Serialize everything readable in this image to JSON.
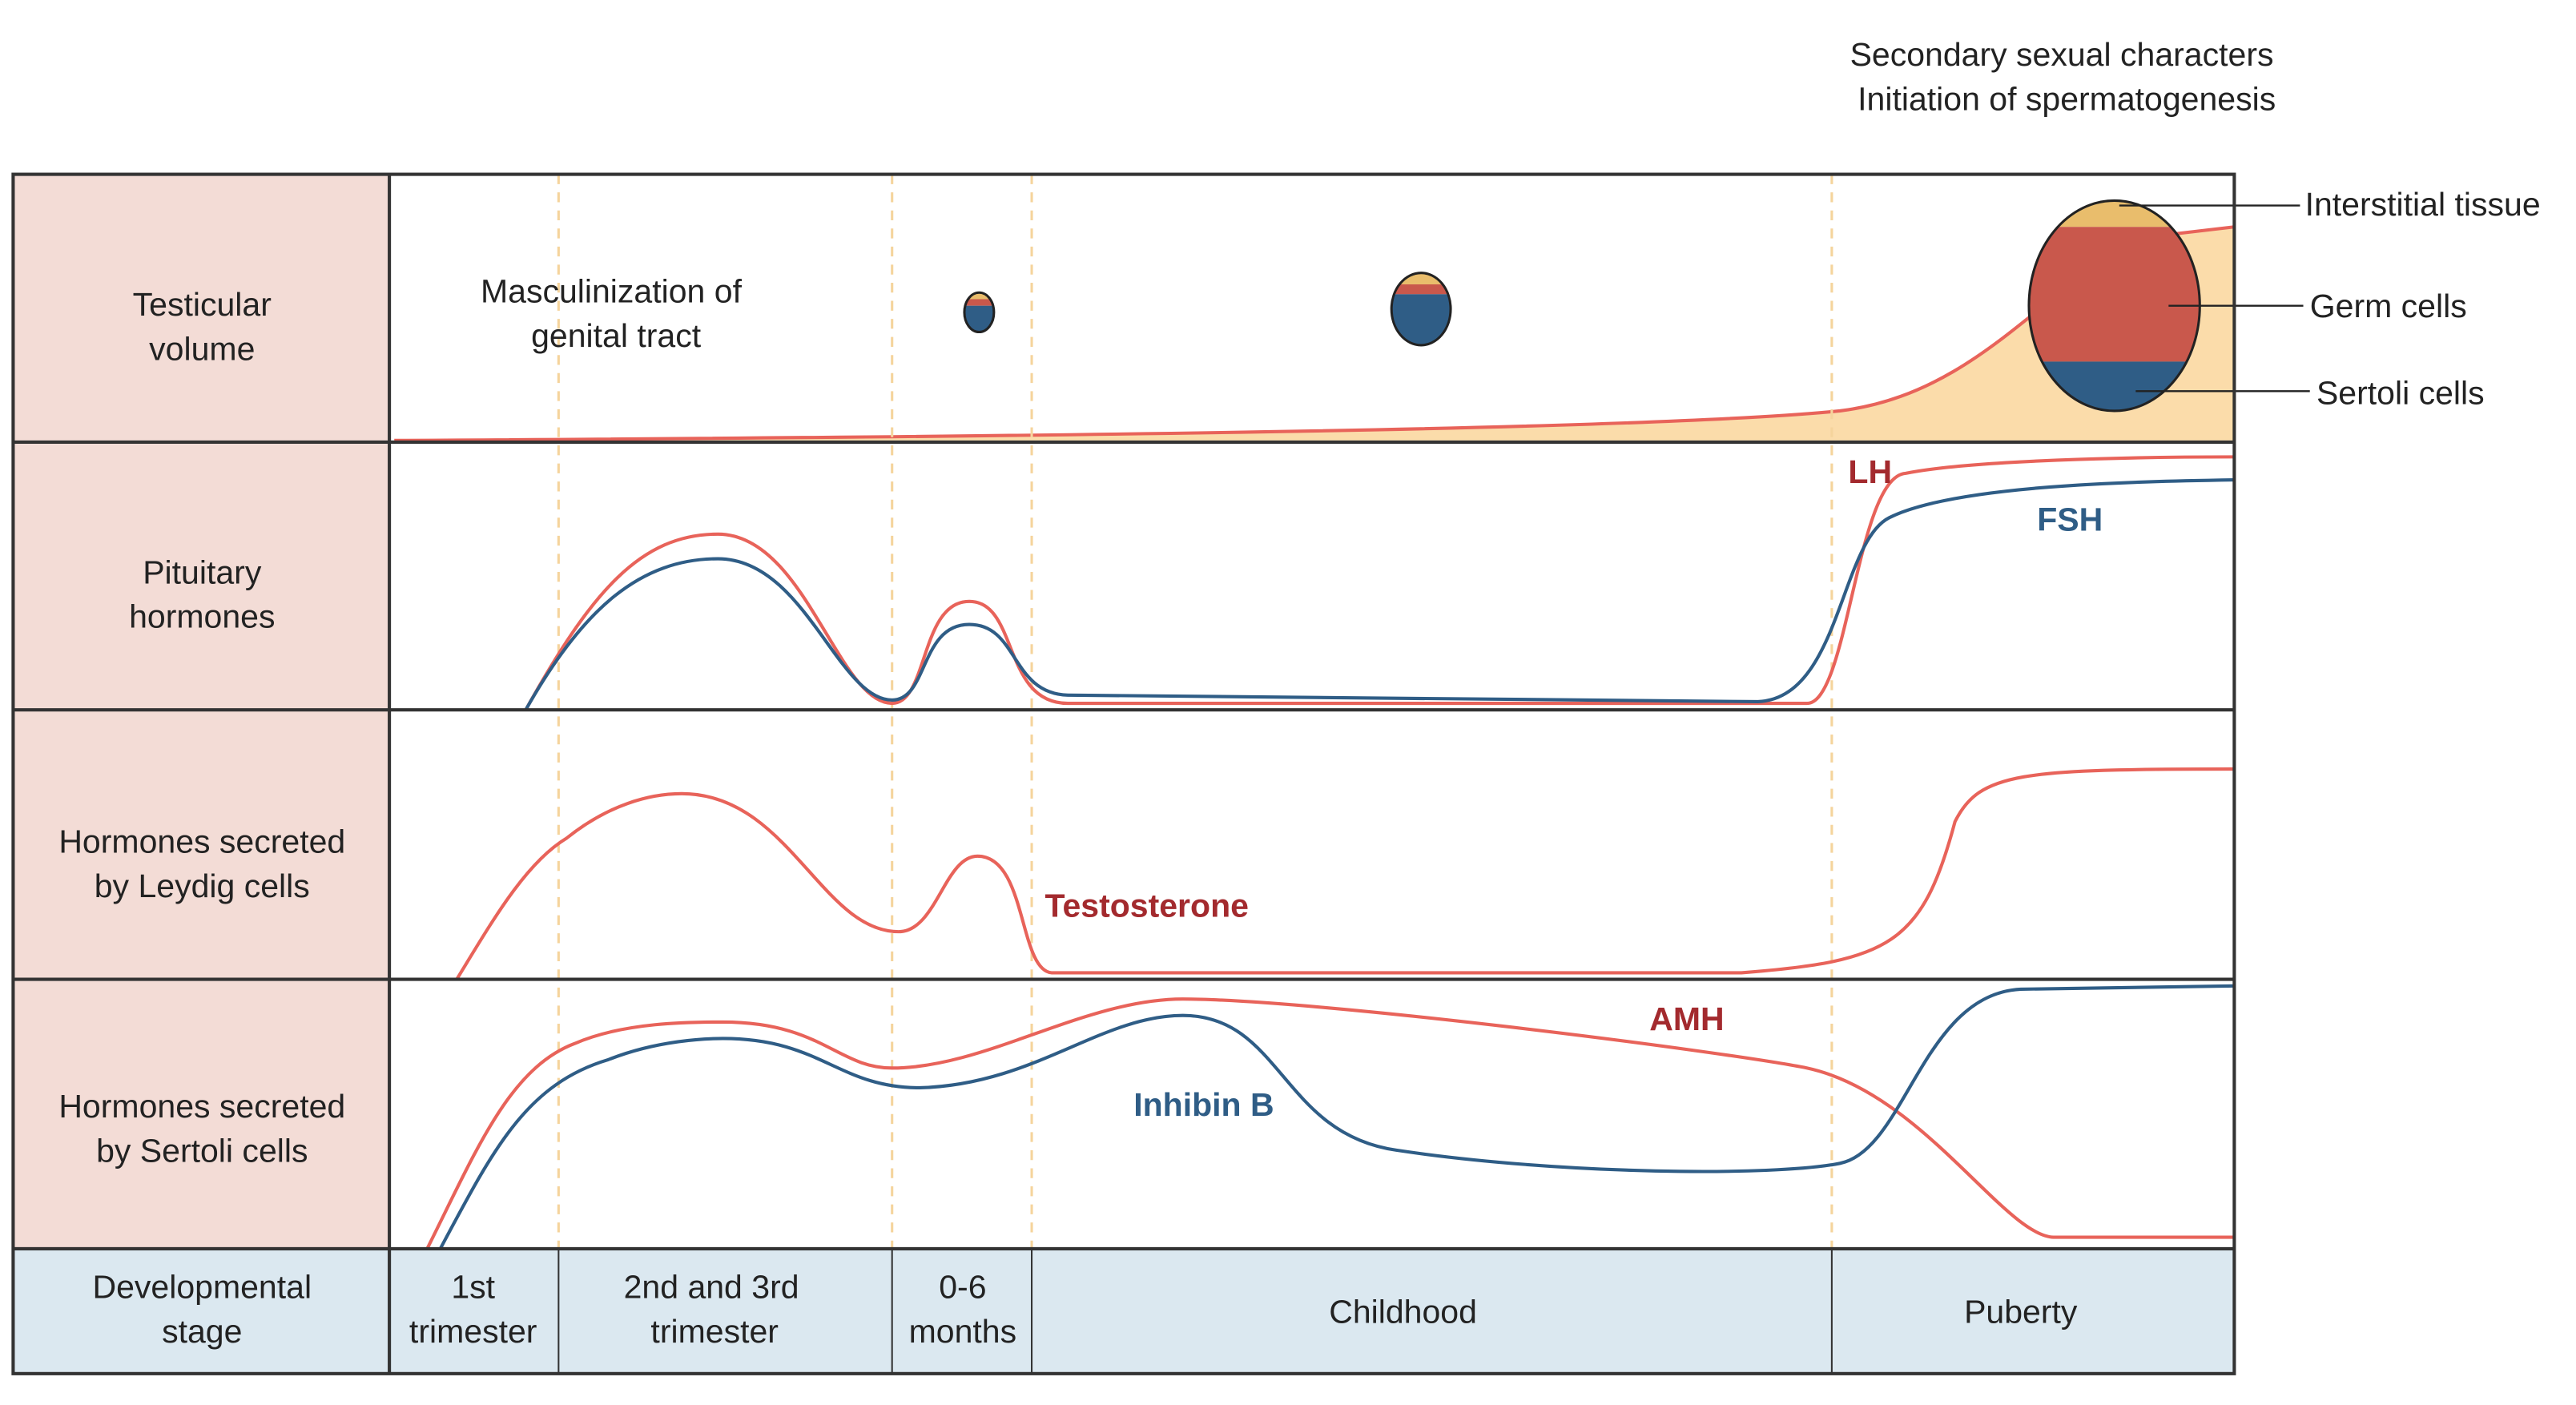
{
  "top_note": [
    "Secondary sexual characters",
    "Initiation of spermatogenesis"
  ],
  "rows": [
    {
      "label": [
        "Testicular",
        "volume"
      ]
    },
    {
      "label": [
        "Pituitary",
        "hormones"
      ]
    },
    {
      "label": [
        "Hormones secreted",
        "by Leydig cells"
      ]
    },
    {
      "label": [
        "Hormones secreted",
        "by Sertoli cells"
      ]
    }
  ],
  "annotations": {
    "masculinization": [
      "Masculinization of",
      "genital tract"
    ],
    "lh": "LH",
    "fsh": "FSH",
    "testosterone": "Testosterone",
    "amh": "AMH",
    "inhibin_b": "Inhibin B"
  },
  "testis_parts": [
    "Interstitial tissue",
    "Germ cells",
    "Sertoli cells"
  ],
  "stage_header": [
    "Developmental",
    "stage"
  ],
  "stages": [
    [
      "1st",
      "trimester"
    ],
    [
      "2nd and 3rd",
      "trimester"
    ],
    [
      "0-6",
      "months"
    ],
    [
      "Childhood"
    ],
    [
      "Puberty"
    ]
  ]
}
